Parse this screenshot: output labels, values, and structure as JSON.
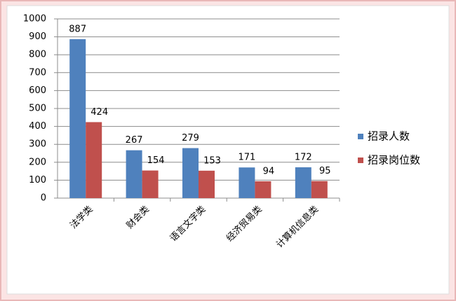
{
  "chart_data": {
    "type": "bar",
    "categories": [
      "法学类",
      "财会类",
      "语言文字类",
      "经济贸易类",
      "计算机信息类"
    ],
    "series": [
      {
        "name": "招录人数",
        "color": "#4f81bd",
        "values": [
          887,
          267,
          279,
          171,
          172
        ]
      },
      {
        "name": "招录岗位数",
        "color": "#c0504d",
        "values": [
          424,
          154,
          153,
          94,
          95
        ]
      }
    ],
    "ylim": [
      0,
      1000
    ],
    "yticks": [
      0,
      100,
      200,
      300,
      400,
      500,
      600,
      700,
      800,
      900,
      1000
    ],
    "grid": true,
    "legend": "right"
  }
}
